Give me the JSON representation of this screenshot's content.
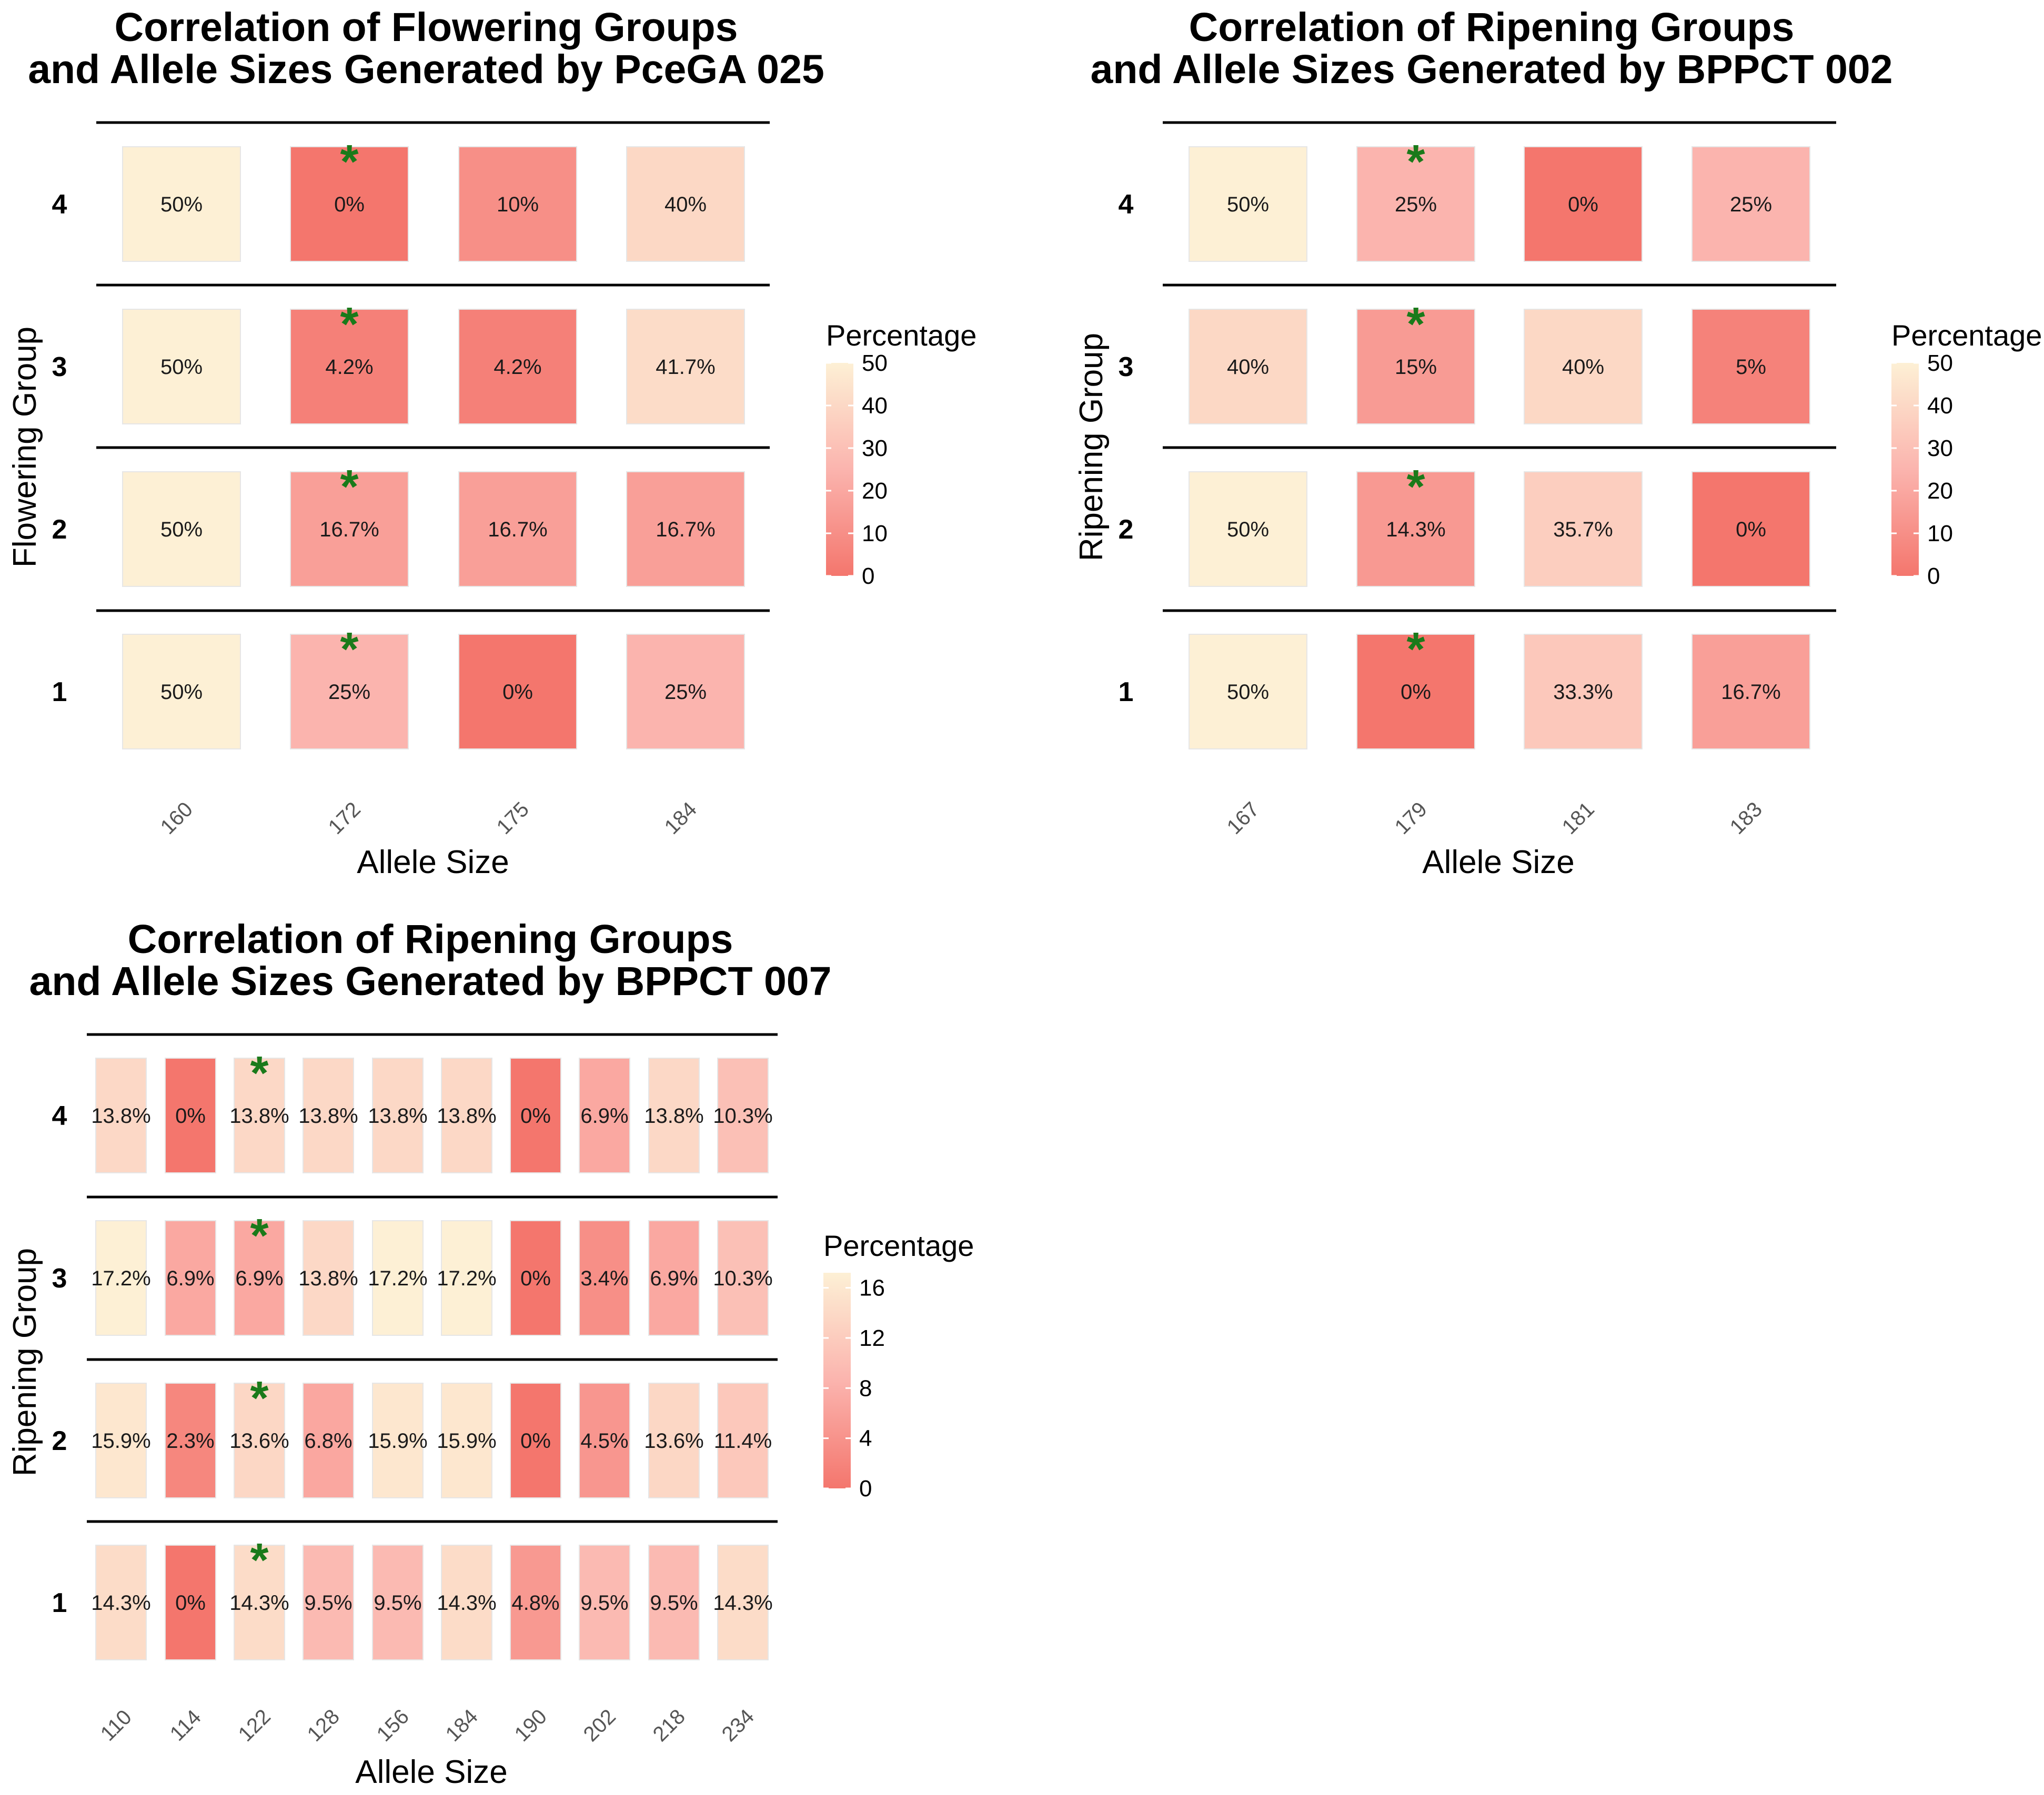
{
  "colors": {
    "low": "#f4766d",
    "mid": "#fbb4ae",
    "high": "#fdf0d5",
    "star": "#1a7a1a"
  },
  "chart_data": [
    {
      "type": "heatmap",
      "title_line1": "Correlation of Flowering Groups",
      "title_line2": "and Allele Sizes Generated by PceGA 025",
      "xlabel": "Allele Size",
      "ylabel": "Flowering Group",
      "x": [
        "160",
        "172",
        "175",
        "184"
      ],
      "y": [
        "4",
        "3",
        "2",
        "1"
      ],
      "values": [
        [
          50,
          0,
          10,
          40
        ],
        [
          50,
          4.2,
          4.2,
          41.7
        ],
        [
          50,
          16.7,
          16.7,
          16.7
        ],
        [
          50,
          25,
          0,
          25
        ]
      ],
      "labels": [
        [
          "50%",
          "0%",
          "10%",
          "40%"
        ],
        [
          "50%",
          "4.2%",
          "4.2%",
          "41.7%"
        ],
        [
          "50%",
          "16.7%",
          "16.7%",
          "16.7%"
        ],
        [
          "50%",
          "25%",
          "0%",
          "25%"
        ]
      ],
      "star_column": "172",
      "star_symbol": "*",
      "legend": {
        "title": "Percentage",
        "min": 0,
        "max": 50,
        "ticks": [
          "50",
          "40",
          "30",
          "20",
          "10",
          "0"
        ]
      }
    },
    {
      "type": "heatmap",
      "title_line1": "Correlation of Ripening Groups",
      "title_line2": "and Allele Sizes Generated by BPPCT 002",
      "xlabel": "Allele Size",
      "ylabel": "Ripening Group",
      "x": [
        "167",
        "179",
        "181",
        "183"
      ],
      "y": [
        "4",
        "3",
        "2",
        "1"
      ],
      "values": [
        [
          50,
          25,
          0,
          25
        ],
        [
          40,
          15,
          40,
          5
        ],
        [
          50,
          14.3,
          35.7,
          0
        ],
        [
          50,
          0,
          33.3,
          16.7
        ]
      ],
      "labels": [
        [
          "50%",
          "25%",
          "0%",
          "25%"
        ],
        [
          "40%",
          "15%",
          "40%",
          "5%"
        ],
        [
          "50%",
          "14.3%",
          "35.7%",
          "0%"
        ],
        [
          "50%",
          "0%",
          "33.3%",
          "16.7%"
        ]
      ],
      "star_column": "179",
      "star_symbol": "*",
      "legend": {
        "title": "Percentage",
        "min": 0,
        "max": 50,
        "ticks": [
          "50",
          "40",
          "30",
          "20",
          "10",
          "0"
        ]
      }
    },
    {
      "type": "heatmap",
      "title_line1": "Correlation of Ripening Groups",
      "title_line2": "and Allele Sizes Generated by BPPCT 007",
      "xlabel": "Allele Size",
      "ylabel": "Ripening Group",
      "x": [
        "110",
        "114",
        "122",
        "128",
        "156",
        "184",
        "190",
        "202",
        "218",
        "234"
      ],
      "y": [
        "4",
        "3",
        "2",
        "1"
      ],
      "values": [
        [
          13.8,
          0,
          13.8,
          13.8,
          13.8,
          13.8,
          0,
          6.9,
          13.8,
          10.3
        ],
        [
          17.2,
          6.9,
          6.9,
          13.8,
          17.2,
          17.2,
          0,
          3.4,
          6.9,
          10.3
        ],
        [
          15.9,
          2.3,
          13.6,
          6.8,
          15.9,
          15.9,
          0,
          4.5,
          13.6,
          11.4
        ],
        [
          14.3,
          0,
          14.3,
          9.5,
          9.5,
          14.3,
          4.8,
          9.5,
          9.5,
          14.3
        ]
      ],
      "labels": [
        [
          "13.8%",
          "0%",
          "13.8%",
          "13.8%",
          "13.8%",
          "13.8%",
          "0%",
          "6.9%",
          "13.8%",
          "10.3%"
        ],
        [
          "17.2%",
          "6.9%",
          "6.9%",
          "13.8%",
          "17.2%",
          "17.2%",
          "0%",
          "3.4%",
          "6.9%",
          "10.3%"
        ],
        [
          "15.9%",
          "2.3%",
          "13.6%",
          "6.8%",
          "15.9%",
          "15.9%",
          "0%",
          "4.5%",
          "13.6%",
          "11.4%"
        ],
        [
          "14.3%",
          "0%",
          "14.3%",
          "9.5%",
          "9.5%",
          "14.3%",
          "4.8%",
          "9.5%",
          "9.5%",
          "14.3%"
        ]
      ],
      "star_column": "122",
      "star_symbol": "*",
      "legend": {
        "title": "Percentage",
        "min": 0,
        "max": 17.2,
        "ticks": [
          "16",
          "12",
          "8",
          "4",
          "0"
        ]
      }
    }
  ]
}
